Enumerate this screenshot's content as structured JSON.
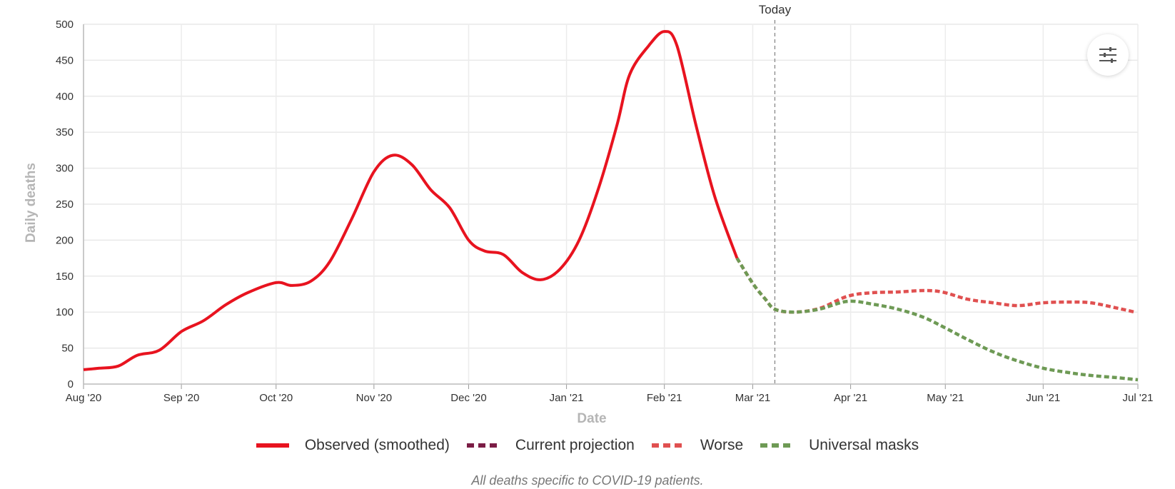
{
  "chart_data": {
    "type": "line",
    "xlabel": "Date",
    "ylabel": "Daily deaths",
    "ylim": [
      0,
      500
    ],
    "yticks": [
      0,
      50,
      100,
      150,
      200,
      250,
      300,
      350,
      400,
      450,
      500
    ],
    "xlim": [
      "2020-08-01",
      "2021-07-01"
    ],
    "xticks": [
      {
        "date": "2020-08-01",
        "label": "Aug '20"
      },
      {
        "date": "2020-09-01",
        "label": "Sep '20"
      },
      {
        "date": "2020-10-01",
        "label": "Oct '20"
      },
      {
        "date": "2020-11-01",
        "label": "Nov '20"
      },
      {
        "date": "2020-12-01",
        "label": "Dec '20"
      },
      {
        "date": "2021-01-01",
        "label": "Jan '21"
      },
      {
        "date": "2021-02-01",
        "label": "Feb '21"
      },
      {
        "date": "2021-03-01",
        "label": "Mar '21"
      },
      {
        "date": "2021-04-01",
        "label": "Apr '21"
      },
      {
        "date": "2021-05-01",
        "label": "May '21"
      },
      {
        "date": "2021-06-01",
        "label": "Jun '21"
      },
      {
        "date": "2021-07-01",
        "label": "Jul '21"
      }
    ],
    "grid": true,
    "legend_position": "bottom",
    "today": {
      "date": "2021-03-08",
      "label": "Today"
    },
    "series": [
      {
        "name": "Worse",
        "color": "#e05050",
        "style": "dashed",
        "points": [
          [
            "2021-02-24",
            175
          ],
          [
            "2021-03-01",
            140
          ],
          [
            "2021-03-05",
            118
          ],
          [
            "2021-03-08",
            104
          ],
          [
            "2021-03-14",
            100
          ],
          [
            "2021-03-22",
            105
          ],
          [
            "2021-03-31",
            122
          ],
          [
            "2021-04-08",
            127
          ],
          [
            "2021-04-16",
            128
          ],
          [
            "2021-04-24",
            130
          ],
          [
            "2021-04-30",
            128
          ],
          [
            "2021-05-08",
            118
          ],
          [
            "2021-05-16",
            113
          ],
          [
            "2021-05-24",
            109
          ],
          [
            "2021-06-01",
            113
          ],
          [
            "2021-06-09",
            114
          ],
          [
            "2021-06-16",
            113
          ],
          [
            "2021-06-24",
            106
          ],
          [
            "2021-06-30",
            100
          ]
        ]
      },
      {
        "name": "Current projection",
        "color": "#7b1d45",
        "style": "dashed",
        "points": []
      },
      {
        "name": "Universal masks",
        "color": "#6e9a55",
        "style": "dashed",
        "points": [
          [
            "2021-02-24",
            175
          ],
          [
            "2021-03-01",
            140
          ],
          [
            "2021-03-05",
            118
          ],
          [
            "2021-03-08",
            104
          ],
          [
            "2021-03-14",
            100
          ],
          [
            "2021-03-22",
            104
          ],
          [
            "2021-03-31",
            115
          ],
          [
            "2021-04-08",
            111
          ],
          [
            "2021-04-16",
            104
          ],
          [
            "2021-04-24",
            93
          ],
          [
            "2021-05-01",
            78
          ],
          [
            "2021-05-08",
            62
          ],
          [
            "2021-05-16",
            45
          ],
          [
            "2021-05-24",
            32
          ],
          [
            "2021-06-01",
            22
          ],
          [
            "2021-06-09",
            16
          ],
          [
            "2021-06-16",
            12
          ],
          [
            "2021-06-24",
            9
          ],
          [
            "2021-07-01",
            6
          ]
        ]
      },
      {
        "name": "Observed (smoothed)",
        "color": "#e8131f",
        "style": "solid",
        "points": [
          [
            "2020-08-01",
            20
          ],
          [
            "2020-08-06",
            22
          ],
          [
            "2020-08-12",
            25
          ],
          [
            "2020-08-18",
            40
          ],
          [
            "2020-08-25",
            47
          ],
          [
            "2020-09-01",
            73
          ],
          [
            "2020-09-08",
            88
          ],
          [
            "2020-09-15",
            110
          ],
          [
            "2020-09-22",
            127
          ],
          [
            "2020-10-01",
            141
          ],
          [
            "2020-10-06",
            137
          ],
          [
            "2020-10-12",
            143
          ],
          [
            "2020-10-18",
            170
          ],
          [
            "2020-10-25",
            230
          ],
          [
            "2020-11-01",
            295
          ],
          [
            "2020-11-07",
            318
          ],
          [
            "2020-11-13",
            305
          ],
          [
            "2020-11-19",
            270
          ],
          [
            "2020-11-25",
            245
          ],
          [
            "2020-12-01",
            200
          ],
          [
            "2020-12-06",
            185
          ],
          [
            "2020-12-12",
            180
          ],
          [
            "2020-12-18",
            155
          ],
          [
            "2020-12-24",
            145
          ],
          [
            "2020-12-30",
            160
          ],
          [
            "2021-01-05",
            200
          ],
          [
            "2021-01-11",
            270
          ],
          [
            "2021-01-17",
            360
          ],
          [
            "2021-01-21",
            430
          ],
          [
            "2021-01-27",
            470
          ],
          [
            "2021-02-01",
            490
          ],
          [
            "2021-02-05",
            470
          ],
          [
            "2021-02-11",
            360
          ],
          [
            "2021-02-17",
            260
          ],
          [
            "2021-02-24",
            175
          ]
        ]
      }
    ],
    "legend": [
      {
        "name": "Observed (smoothed)",
        "color": "#e8131f",
        "style": "solid"
      },
      {
        "name": "Current projection",
        "color": "#7b1d45",
        "style": "dashed"
      },
      {
        "name": "Worse",
        "color": "#e05050",
        "style": "dashed"
      },
      {
        "name": "Universal masks",
        "color": "#6e9a55",
        "style": "dashed"
      }
    ]
  },
  "footnote": "All deaths specific to COVID-19 patients.",
  "controls": {
    "settings_icon": "sliders-icon"
  }
}
